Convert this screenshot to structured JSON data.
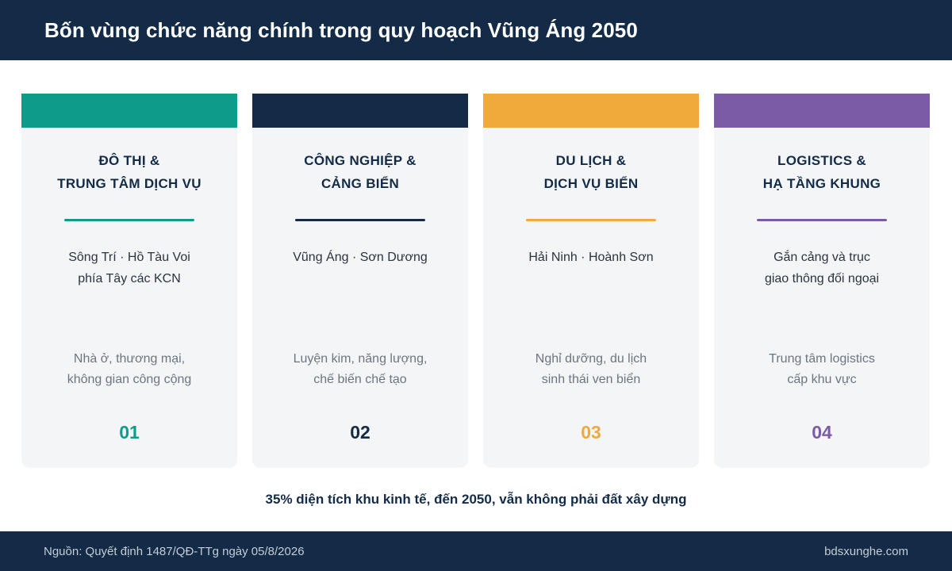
{
  "header": {
    "title": "Bốn vùng chức năng chính trong quy hoạch Vũng Áng 2050"
  },
  "cards": [
    {
      "color": "#0f9b8a",
      "title_line1": "ĐÔ THỊ &",
      "title_line2": "TRUNG TÂM DỊCH VỤ",
      "location_line1": "Sông Trí · Hồ Tàu Voi",
      "location_line2": "phía Tây các KCN",
      "desc_line1": "Nhà ở, thương mại,",
      "desc_line2": "không gian công cộng",
      "number": "01"
    },
    {
      "color": "#132b47",
      "title_line1": "CÔNG NGHIỆP &",
      "title_line2": "CẢNG BIỂN",
      "location_line1": "Vũng Áng · Sơn Dương",
      "location_line2": "",
      "desc_line1": "Luyện kim, năng lượng,",
      "desc_line2": "chế biến chế tạo",
      "number": "02"
    },
    {
      "color": "#f0a93b",
      "title_line1": "DU LỊCH &",
      "title_line2": "DỊCH VỤ BIỂN",
      "location_line1": "Hải Ninh · Hoành Sơn",
      "location_line2": "",
      "desc_line1": "Nghỉ dưỡng, du lịch",
      "desc_line2": "sinh thái ven biển",
      "number": "03"
    },
    {
      "color": "#7b5aa6",
      "title_line1": "LOGISTICS &",
      "title_line2": "HẠ TẦNG KHUNG",
      "location_line1": "Gắn cảng và trục",
      "location_line2": "giao thông đối ngoại",
      "desc_line1": "Trung tâm logistics",
      "desc_line2": "cấp khu vực",
      "number": "04"
    }
  ],
  "note": "35% diện tích khu kinh tế, đến 2050, vẫn không phải đất xây dựng",
  "footer": {
    "source": "Nguồn: Quyết định 1487/QĐ-TTg ngày 05/8/2026",
    "site": "bdsxunghe.com"
  }
}
